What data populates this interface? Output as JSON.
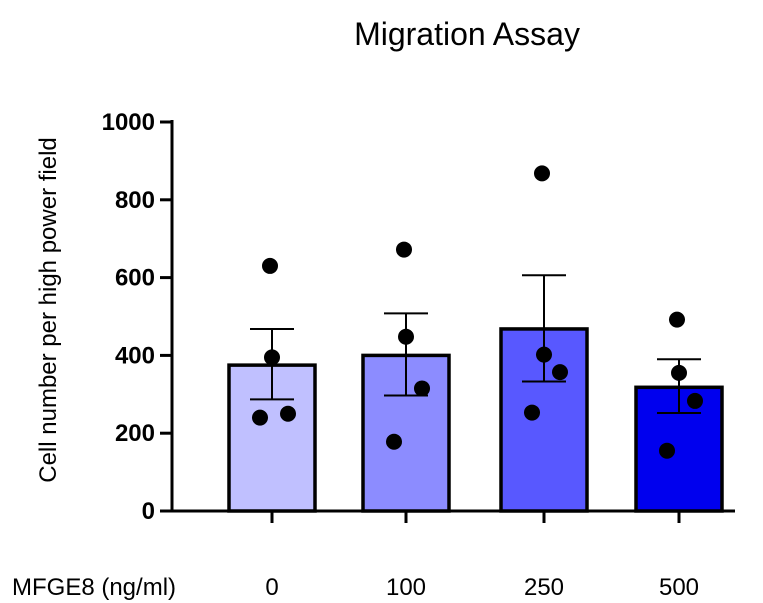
{
  "chart_data": {
    "type": "bar",
    "title": "Migration Assay",
    "xlabel": "MFGE8 (ng/ml)",
    "ylabel": "Cell number per high power field",
    "categories": [
      "0",
      "100",
      "250",
      "500"
    ],
    "values": [
      375,
      400,
      468,
      318
    ],
    "error_upper": [
      468,
      508,
      606,
      390
    ],
    "error_lower": [
      287,
      297,
      333,
      252
    ],
    "points": [
      [
        630,
        395,
        250,
        240
      ],
      [
        672,
        448,
        315,
        178
      ],
      [
        868,
        402,
        357,
        253
      ],
      [
        492,
        355,
        283,
        155
      ]
    ],
    "bar_colors": [
      "#c0c0ff",
      "#8c8cff",
      "#5858ff",
      "#0000ee"
    ],
    "ylim": [
      0,
      1000
    ],
    "yticks": [
      "0",
      "200",
      "400",
      "600",
      "800",
      "1000"
    ],
    "grid": false,
    "legend": "none"
  }
}
